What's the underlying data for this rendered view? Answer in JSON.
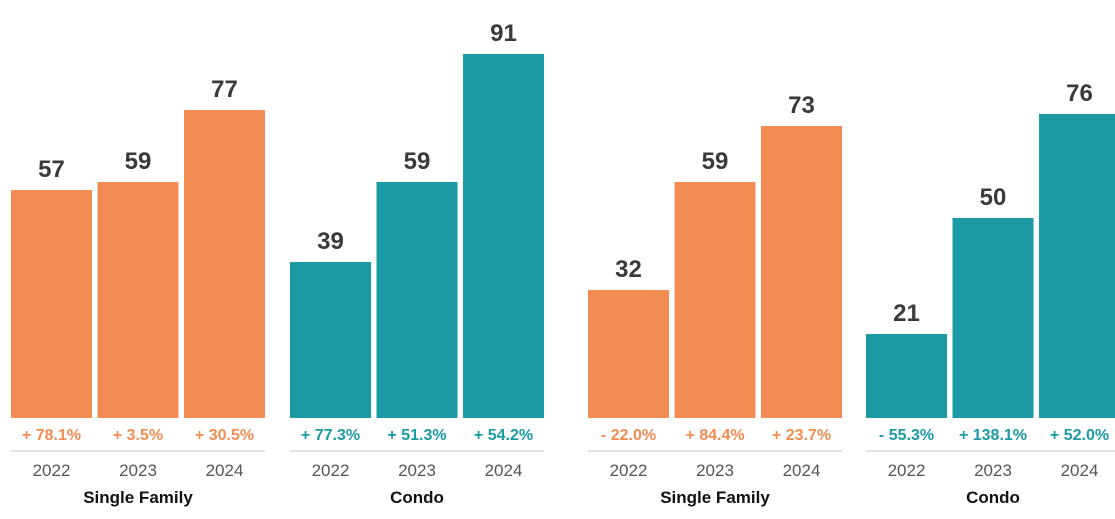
{
  "chart_data": [
    {
      "type": "bar",
      "ylim": [
        0,
        100
      ],
      "groups": [
        {
          "name": "Single Family",
          "color": "#f28c52",
          "categories": [
            "2022",
            "2023",
            "2024"
          ],
          "values": [
            57,
            59,
            77
          ],
          "changes": [
            "+ 78.1%",
            "+ 3.5%",
            "+ 30.5%"
          ]
        },
        {
          "name": "Condo",
          "color": "#1b9aa4",
          "categories": [
            "2022",
            "2023",
            "2024"
          ],
          "values": [
            39,
            59,
            91
          ],
          "changes": [
            "+ 77.3%",
            "+ 51.3%",
            "+ 54.2%"
          ]
        }
      ]
    },
    {
      "type": "bar",
      "ylim": [
        0,
        100
      ],
      "groups": [
        {
          "name": "Single Family",
          "color": "#f28c52",
          "categories": [
            "2022",
            "2023",
            "2024"
          ],
          "values": [
            32,
            59,
            73
          ],
          "changes": [
            "- 22.0%",
            "+ 84.4%",
            "+ 23.7%"
          ]
        },
        {
          "name": "Condo",
          "color": "#1b9aa4",
          "categories": [
            "2022",
            "2023",
            "2024"
          ],
          "values": [
            21,
            50,
            76
          ],
          "changes": [
            "- 55.3%",
            "+ 138.1%",
            "+ 52.0%"
          ]
        }
      ]
    }
  ]
}
